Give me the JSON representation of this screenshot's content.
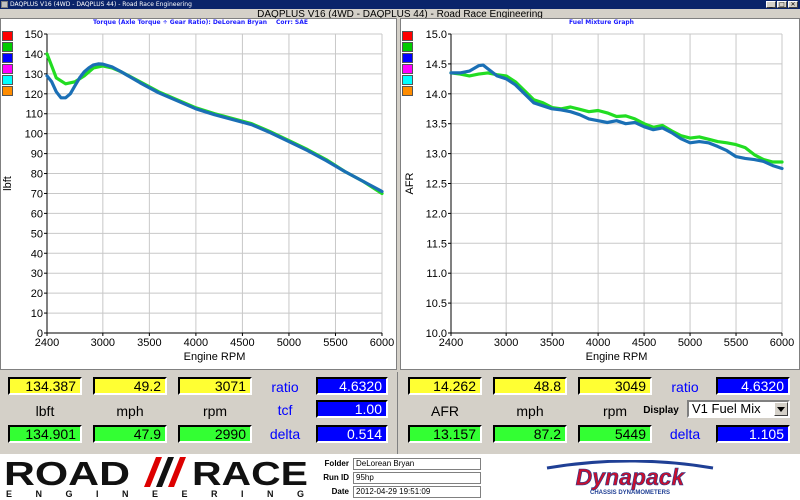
{
  "window": {
    "title": "DAQPLUS V16 (4WD - DAQPLUS 44) - Road Race Engineering",
    "minimize": "_",
    "maximize": "□",
    "close": "✕"
  },
  "main_title": "DAQPLUS V16 (4WD - DAQPLUS 44) - Road Race Engineering",
  "left_panel": {
    "title": "Torque (Axle Torque ÷ Gear Ratio): DeLorean Bryan",
    "corr": "Corr: SAE",
    "swatch_colors": [
      "#ff0000",
      "#00cc00",
      "#0000ff",
      "#ff00ff",
      "#00ffff",
      "#ff8c00"
    ]
  },
  "right_panel": {
    "title": "Fuel Mixture Graph",
    "swatch_colors": [
      "#ff0000",
      "#00cc00",
      "#0000ff",
      "#ff00ff",
      "#00ffff",
      "#ff8c00"
    ]
  },
  "chart_data": [
    {
      "type": "line",
      "title": "Torque (Axle Torque ÷ Gear Ratio): DeLorean Bryan",
      "xlabel": "Engine RPM",
      "ylabel": "lbft",
      "xlim": [
        2400,
        6000
      ],
      "ylim": [
        0,
        150
      ],
      "xticks": [
        2400,
        3000,
        3500,
        4000,
        4500,
        5000,
        5500,
        6000
      ],
      "yticks": [
        0,
        10,
        20,
        30,
        40,
        50,
        60,
        70,
        80,
        90,
        100,
        110,
        120,
        130,
        140,
        150
      ],
      "grid": true,
      "series": [
        {
          "color": "#22dd22",
          "x": [
            2400,
            2450,
            2500,
            2600,
            2700,
            2800,
            2900,
            3000,
            3100,
            3200,
            3400,
            3600,
            3800,
            4000,
            4200,
            4400,
            4600,
            4800,
            5000,
            5200,
            5400,
            5600,
            5800,
            6000
          ],
          "y": [
            140,
            134,
            128,
            125,
            126,
            129,
            133,
            134,
            133,
            131,
            126,
            121,
            117,
            113,
            110,
            107.5,
            105,
            101,
            96.5,
            92,
            87,
            81,
            76,
            70
          ]
        },
        {
          "color": "#1a6fb5",
          "x": [
            2400,
            2450,
            2500,
            2550,
            2600,
            2650,
            2700,
            2750,
            2800,
            2850,
            2900,
            2950,
            3000,
            3100,
            3200,
            3400,
            3600,
            3800,
            4000,
            4200,
            4400,
            4600,
            4800,
            5000,
            5200,
            5400,
            5600,
            5800,
            6000
          ],
          "y": [
            129,
            126,
            121,
            118,
            118,
            120,
            124,
            128,
            131,
            133,
            134.5,
            135,
            134.9,
            133.5,
            131,
            125.5,
            120.5,
            116.5,
            112.5,
            109.5,
            107,
            104.5,
            100.5,
            96,
            91.5,
            86.5,
            81,
            76,
            71
          ]
        }
      ]
    },
    {
      "type": "line",
      "title": "Fuel Mixture Graph",
      "xlabel": "Engine RPM",
      "ylabel": "AFR",
      "xlim": [
        2400,
        6000
      ],
      "ylim": [
        10.0,
        15.0
      ],
      "xticks": [
        2400,
        3000,
        3500,
        4000,
        4500,
        5000,
        5500,
        6000
      ],
      "yticks": [
        10.0,
        10.5,
        11.0,
        11.5,
        12.0,
        12.5,
        13.0,
        13.5,
        14.0,
        14.5,
        15.0
      ],
      "grid": true,
      "series": [
        {
          "color": "#22dd22",
          "x": [
            2400,
            2500,
            2600,
            2700,
            2800,
            2900,
            3000,
            3100,
            3200,
            3300,
            3400,
            3500,
            3600,
            3700,
            3800,
            3900,
            4000,
            4100,
            4200,
            4300,
            4400,
            4500,
            4600,
            4700,
            4800,
            4900,
            5000,
            5100,
            5200,
            5300,
            5400,
            5500,
            5600,
            5700,
            5800,
            5900,
            6000
          ],
          "y": [
            14.35,
            14.33,
            14.3,
            14.33,
            14.35,
            14.32,
            14.3,
            14.2,
            14.05,
            13.9,
            13.85,
            13.77,
            13.75,
            13.78,
            13.74,
            13.7,
            13.72,
            13.68,
            13.62,
            13.63,
            13.58,
            13.5,
            13.44,
            13.47,
            13.38,
            13.3,
            13.26,
            13.28,
            13.24,
            13.2,
            13.18,
            13.15,
            13.1,
            12.98,
            12.9,
            12.86,
            12.86
          ]
        },
        {
          "color": "#1a6fb5",
          "x": [
            2400,
            2500,
            2600,
            2700,
            2750,
            2800,
            2900,
            3000,
            3100,
            3200,
            3300,
            3400,
            3500,
            3600,
            3700,
            3800,
            3900,
            4000,
            4100,
            4200,
            4300,
            4400,
            4500,
            4600,
            4700,
            4800,
            4900,
            5000,
            5100,
            5200,
            5300,
            5400,
            5500,
            5600,
            5700,
            5800,
            5900,
            6000
          ],
          "y": [
            14.35,
            14.35,
            14.38,
            14.47,
            14.48,
            14.42,
            14.3,
            14.25,
            14.15,
            14.0,
            13.85,
            13.8,
            13.75,
            13.73,
            13.7,
            13.65,
            13.58,
            13.55,
            13.52,
            13.55,
            13.5,
            13.52,
            13.45,
            13.4,
            13.43,
            13.35,
            13.25,
            13.18,
            13.2,
            13.18,
            13.12,
            13.05,
            12.95,
            12.92,
            12.9,
            12.87,
            12.8,
            12.75
          ]
        }
      ]
    }
  ],
  "left_readout": {
    "row1": [
      "134.387",
      "49.2",
      "3071"
    ],
    "labels": [
      "lbft",
      "mph",
      "rpm"
    ],
    "row3": [
      "134.901",
      "47.9",
      "2990"
    ],
    "side": [
      {
        "label": "ratio",
        "value": "4.6320"
      },
      {
        "label": "tcf",
        "value": "1.00"
      },
      {
        "label": "delta",
        "value": "0.514"
      }
    ]
  },
  "right_readout": {
    "row1": [
      "14.262",
      "48.8",
      "3049"
    ],
    "labels": [
      "AFR",
      "mph",
      "rpm"
    ],
    "row3": [
      "13.157",
      "87.2",
      "5449"
    ],
    "display_label": "Display",
    "display_value": "V1 Fuel Mix",
    "side": [
      {
        "label": "ratio",
        "value": "4.6320"
      },
      {
        "label": "delta",
        "value": "1.105"
      }
    ]
  },
  "footer": {
    "logo_word1": "ROAD",
    "logo_word2": "RACE",
    "logo_sub": "ENGINEERING",
    "folder_label": "Folder",
    "folder_value": "DeLorean Bryan",
    "runid_label": "Run ID",
    "runid_value": "95hp",
    "date_label": "Date",
    "date_value": "2012-04-29 19:51:09",
    "dynapack": "Dynapack",
    "dynapack_sub": "CHASSIS DYNAMOMETERS"
  }
}
